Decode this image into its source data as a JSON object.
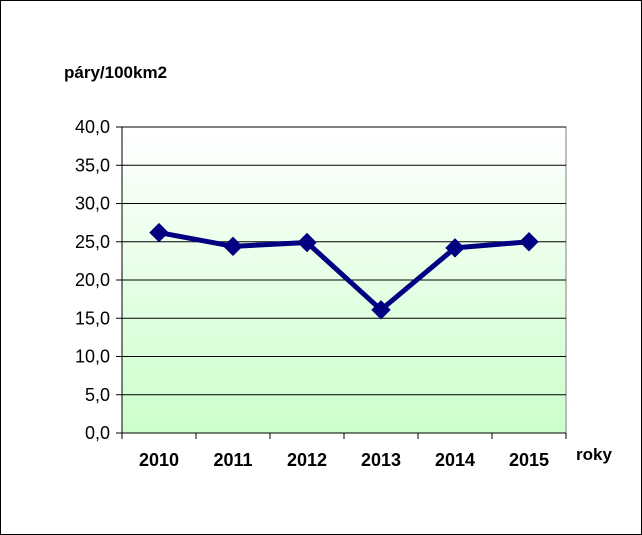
{
  "chart_data": {
    "type": "line",
    "ylabel": "páry/100km2",
    "xlabel": "roky",
    "categories": [
      "2010",
      "2011",
      "2012",
      "2013",
      "2014",
      "2015"
    ],
    "series": [
      {
        "values": [
          26.2,
          24.4,
          24.9,
          16.1,
          24.2,
          25.0
        ]
      }
    ],
    "ylim": [
      0,
      40
    ],
    "yticks": [
      "0,0",
      "5,0",
      "10,0",
      "15,0",
      "20,0",
      "25,0",
      "30,0",
      "35,0",
      "40,0"
    ],
    "grid": true,
    "legend": "none",
    "colors": {
      "line": "#000080",
      "grid": "#000000",
      "plot_bg_top": "#ffffff",
      "plot_bg_bottom": "#ccffcc"
    }
  }
}
